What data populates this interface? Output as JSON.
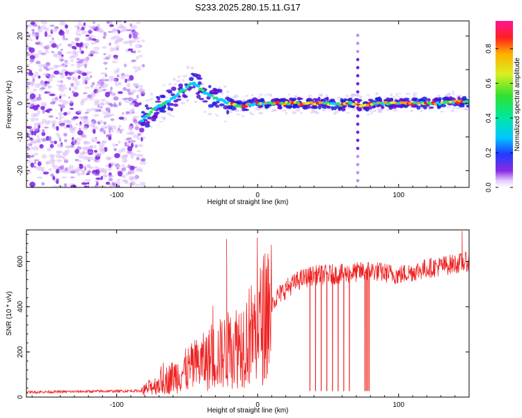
{
  "figure_title": "S233.2025.280.15.11.G17",
  "chart_data": [
    {
      "type": "heatmap",
      "title": "S233.2025.280.15.11.G17",
      "xlabel": "Height of straight line (km)",
      "ylabel": "Frequency (Hz)",
      "xlim": [
        -164,
        150
      ],
      "ylim": [
        -25,
        24.5
      ],
      "x_ticks": [
        "-100",
        "0",
        "100"
      ],
      "x_tick_values": [
        -100,
        0,
        100
      ],
      "y_ticks": [
        "20",
        "10",
        "0",
        "-10",
        "-20"
      ],
      "y_tick_values": [
        20,
        10,
        0,
        -10,
        -20
      ],
      "colorbar": {
        "label": "Normalized spectral amplitude",
        "range": [
          0.0,
          0.96
        ],
        "ticks": [
          "0.0",
          "0.2",
          "0.4",
          "0.6",
          "0.8"
        ],
        "tick_values": [
          0.0,
          0.2,
          0.4,
          0.6,
          0.8
        ],
        "colormap": "rainbow: white-violet -> blue -> cyan -> green -> yellow -> red -> magenta"
      },
      "noise_region_x": [
        -164,
        -82
      ],
      "ridge": {
        "x": [
          -82,
          -78,
          -74,
          -70,
          -66,
          -62,
          -58,
          -54,
          -50,
          -46,
          -42,
          -38,
          -34,
          -30,
          -26,
          -22,
          -18,
          -14,
          -10,
          -6,
          0,
          10,
          20,
          30,
          40,
          50,
          60,
          65,
          70,
          75,
          80,
          90,
          100,
          110,
          120,
          130,
          140,
          150
        ],
        "frequency_hz": [
          -5,
          -3.5,
          -2,
          -1,
          0,
          1,
          2,
          3.5,
          4.5,
          6,
          5,
          3.5,
          2.5,
          1.5,
          1,
          0,
          0,
          -1,
          -1,
          -0.5,
          0,
          0,
          0,
          0,
          0,
          0,
          -0.5,
          0,
          0,
          -1,
          0,
          0,
          0,
          0,
          0,
          0,
          0.5,
          0.5
        ]
      },
      "vertical_dotted_line_x": 71
    },
    {
      "type": "line",
      "title": "",
      "xlabel": "Height of straight line (km)",
      "ylabel": "SNR (10 * v/v)",
      "xlim": [
        -164,
        150
      ],
      "ylim": [
        0,
        740
      ],
      "x_ticks": [
        "-100",
        "0",
        "100"
      ],
      "x_tick_values": [
        -100,
        0,
        100
      ],
      "y_ticks": [
        "0",
        "200",
        "400",
        "600"
      ],
      "y_tick_values": [
        0,
        200,
        400,
        600
      ],
      "color": "#ee2222",
      "trend": {
        "x": [
          -164,
          -120,
          -82,
          -70,
          -60,
          -50,
          -40,
          -30,
          -20,
          -10,
          0,
          10,
          20,
          30,
          40,
          60,
          80,
          100,
          120,
          140,
          150
        ],
        "snr": [
          22,
          25,
          28,
          60,
          90,
          120,
          150,
          180,
          210,
          250,
          300,
          420,
          480,
          520,
          540,
          545,
          560,
          540,
          570,
          590,
          600
        ]
      },
      "spikes": [
        {
          "x": -22,
          "snr": 700
        },
        {
          "x": 145,
          "snr": 735
        }
      ],
      "dropouts_x": [
        37,
        41,
        45,
        49,
        53,
        57,
        61,
        65,
        76,
        77,
        78,
        79
      ]
    }
  ]
}
